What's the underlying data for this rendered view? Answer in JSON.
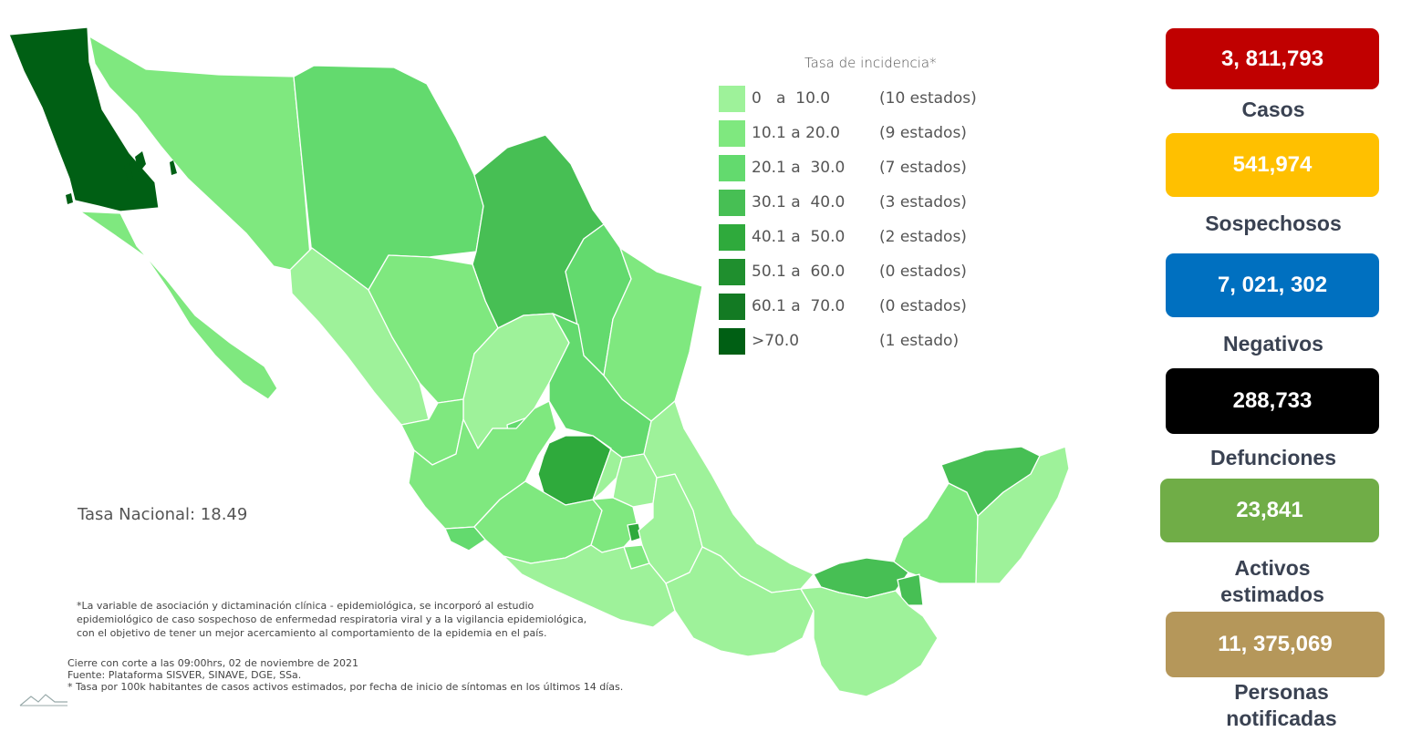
{
  "legend": {
    "title": "Tasa de incidencia*",
    "items": [
      {
        "range": "0   a  10.0",
        "count": "(10 estados)",
        "color": "#9ef29a"
      },
      {
        "range": "10.1 a 20.0",
        "count": "(9 estados)",
        "color": "#7fe87f"
      },
      {
        "range": "20.1 a  30.0",
        "count": "(7 estados)",
        "color": "#63da6e"
      },
      {
        "range": "30.1 a  40.0",
        "count": "(3 estados)",
        "color": "#47bf54"
      },
      {
        "range": "40.1 a  50.0",
        "count": "(2 estados)",
        "color": "#2faa3c"
      },
      {
        "range": "50.1 a  60.0",
        "count": "(0 estados)",
        "color": "#1f8f2e"
      },
      {
        "range": "60.1 a  70.0",
        "count": "(0 estados)",
        "color": "#137a23"
      },
      {
        "range": ">70.0",
        "count": "(1 estado)",
        "color": "#005f14"
      }
    ]
  },
  "national_rate": "Tasa Nacional: 18.49",
  "notes": [
    "*La variable de asociación y dictaminación clínica - epidemiológica, se incorporó al estudio",
    "epidemiológico de caso sospechoso de enfermedad respiratoria viral y a la vigilancia epidemiológica,",
    "con el objetivo de tener un mejor acercamiento al comportamiento de la epidemia en el país."
  ],
  "footer": [
    "Cierre con corte a las 09:00hrs, 02 de noviembre de 2021",
    "Fuente: Plataforma SISVER, SINAVE, DGE, SSa.",
    "* Tasa por 100k habitantes de casos activos estimados, por fecha de inicio de síntomas en los últimos 14 días."
  ],
  "stats": [
    {
      "value": "3, 811,793",
      "label": "Casos",
      "color": "#c00000"
    },
    {
      "value": "541,974",
      "label": "Sospechosos",
      "color": "#ffc000"
    },
    {
      "value": "7, 021, 302",
      "label": "Negativos",
      "color": "#0070c0"
    },
    {
      "value": "288,733",
      "label": "Defunciones",
      "color": "#000000"
    },
    {
      "value": "23,841",
      "label": "Activos estimados",
      "color": "#70ad47"
    },
    {
      "value": "11, 375,069",
      "label": "Personas notificadas",
      "color": "#b5975a"
    }
  ]
}
